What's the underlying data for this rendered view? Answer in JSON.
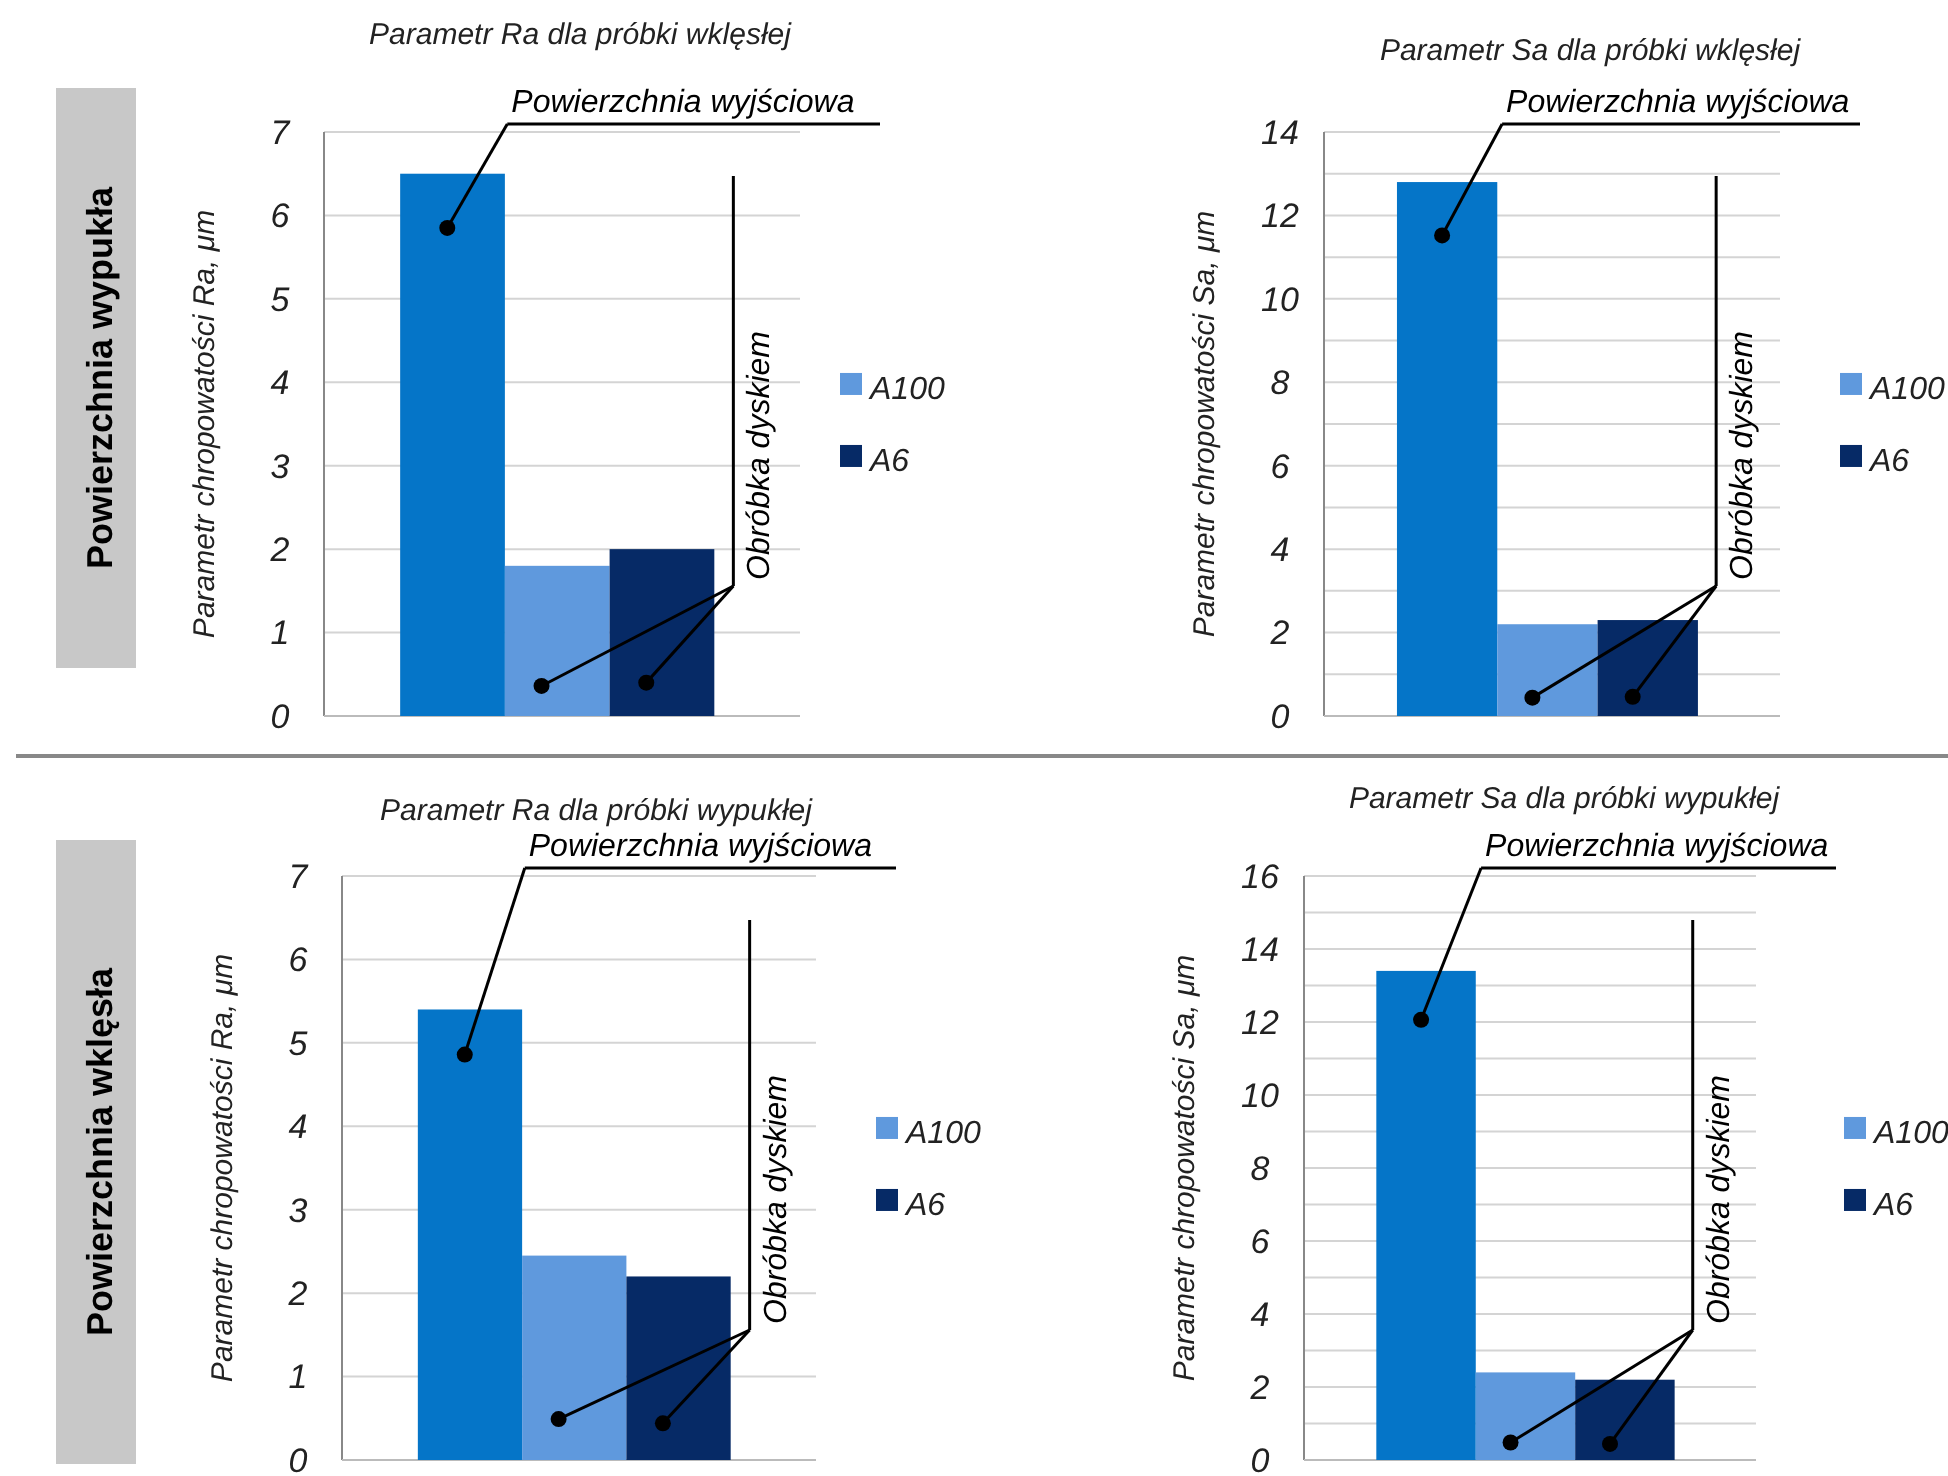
{
  "chart_data": [
    {
      "type": "bar",
      "title": "Parametr Ra dla próbki wklęsłej",
      "ylabel": "Parametr chropowatości Ra, μm",
      "categories": [
        null,
        null,
        null
      ],
      "stacked": true,
      "ylim": [
        0,
        7
      ],
      "yticks": [
        0,
        1,
        2,
        3,
        4,
        5,
        6,
        7
      ],
      "grid": "y",
      "legend": "right",
      "annotations": [
        "Powierzchnia wypukła",
        "Powierzchnia wyjściowa",
        "Obróbka dyskiem"
      ],
      "series": [
        {
          "color": "#0575c8",
          "values": [
            6.5,
            null,
            null
          ]
        },
        {
          "name": "A100",
          "color": "#5f99dd",
          "values": [
            null,
            1.8,
            null
          ]
        },
        {
          "name": "A6",
          "color": "#062a66",
          "values": [
            null,
            null,
            2.0
          ]
        }
      ]
    },
    {
      "type": "bar",
      "title": "Parametr Sa dla próbki wklęsłej",
      "ylabel": "Parametr chropowatości Sa, μm",
      "categories": [
        null,
        null,
        null
      ],
      "stacked": true,
      "ylim": [
        0,
        14
      ],
      "yticks": [
        0,
        {
          "value": 1,
          "label": null
        },
        2,
        {
          "value": 3,
          "label": null
        },
        4,
        {
          "value": 5,
          "label": null
        },
        6,
        {
          "value": 7,
          "label": null
        },
        8,
        {
          "value": 9,
          "label": null
        },
        10,
        {
          "value": 11,
          "label": null
        },
        12,
        {
          "value": 13,
          "label": null
        },
        14
      ],
      "grid": "y",
      "legend": "right",
      "annotations": [
        "Powierzchnia wyjściowa",
        "Obróbka dyskiem"
      ],
      "series": [
        {
          "color": "#0575c8",
          "values": [
            12.8,
            null,
            null
          ]
        },
        {
          "name": "A100",
          "color": "#5f99dd",
          "values": [
            null,
            2.2,
            null
          ]
        },
        {
          "name": "A6",
          "color": "#062a66",
          "values": [
            null,
            null,
            2.3
          ]
        }
      ]
    },
    {
      "type": "bar",
      "title": "Parametr Ra dla próbki wypukłej",
      "ylabel": "Parametr chropowatości Ra, μm",
      "categories": [
        null,
        null,
        null
      ],
      "stacked": true,
      "ylim": [
        0,
        7
      ],
      "yticks": [
        0,
        1,
        2,
        3,
        4,
        5,
        6,
        7
      ],
      "grid": "y",
      "legend": "right",
      "annotations": [
        "Powierzchnia wklęsła",
        "Powierzchnia wyjściowa",
        "Obróbka dyskiem"
      ],
      "series": [
        {
          "color": "#0575c8",
          "values": [
            5.4,
            null,
            null
          ]
        },
        {
          "name": "A100",
          "color": "#5f99dd",
          "values": [
            null,
            2.45,
            null
          ]
        },
        {
          "name": "A6",
          "color": "#062a66",
          "values": [
            null,
            null,
            2.2
          ]
        }
      ]
    },
    {
      "type": "bar",
      "title": "Parametr Sa dla próbki wypukłej",
      "ylabel": "Parametr chropowatości Sa, μm",
      "categories": [
        null,
        null,
        null
      ],
      "stacked": true,
      "ylim": [
        0,
        16
      ],
      "yticks": [
        0,
        {
          "value": 1,
          "label": null
        },
        2,
        {
          "value": 3,
          "label": null
        },
        4,
        {
          "value": 5,
          "label": null
        },
        6,
        {
          "value": 7,
          "label": null
        },
        8,
        {
          "value": 9,
          "label": null
        },
        10,
        {
          "value": 11,
          "label": null
        },
        12,
        {
          "value": 13,
          "label": null
        },
        14,
        {
          "value": 15,
          "label": null
        },
        16
      ],
      "grid": "y",
      "legend": "right",
      "annotations": [
        "Powierzchnia wyjściowa",
        "Obróbka dyskiem"
      ],
      "series": [
        {
          "color": "#0575c8",
          "values": [
            13.4,
            null,
            null
          ]
        },
        {
          "name": "A100",
          "color": "#5f99dd",
          "values": [
            null,
            2.4,
            null
          ]
        },
        {
          "name": "A6",
          "color": "#062a66",
          "values": [
            null,
            null,
            2.2
          ]
        }
      ]
    }
  ]
}
